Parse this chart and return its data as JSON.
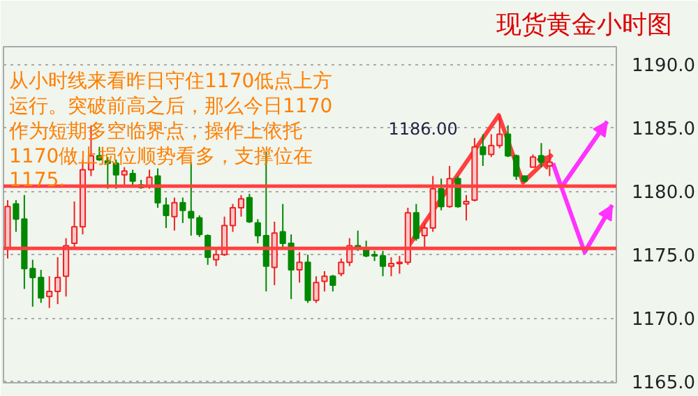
{
  "chart_data": {
    "type": "candlestick",
    "title": "现货黄金小时图",
    "categories": [
      null,
      null,
      null,
      null,
      null,
      null,
      null,
      null,
      null,
      null,
      null,
      null,
      null,
      null,
      null,
      null,
      null,
      null,
      null,
      null,
      null,
      null,
      null,
      null,
      null,
      null,
      null,
      null,
      null,
      null,
      null,
      null,
      null,
      null,
      null,
      null,
      null,
      null,
      null,
      null,
      null,
      null,
      null,
      null,
      null,
      null,
      null,
      null,
      null,
      null,
      null,
      null,
      null,
      null,
      null,
      null,
      null,
      null,
      null,
      null,
      null,
      null,
      null,
      null,
      null,
      null
    ],
    "ohlc": [
      [
        1175.5,
        1179.3,
        1174.7,
        1178.8
      ],
      [
        1179.0,
        1179.3,
        1176.8,
        1177.8
      ],
      [
        1177.8,
        1179.7,
        1172.3,
        1173.9
      ],
      [
        1173.9,
        1174.6,
        1170.9,
        1173.2
      ],
      [
        1173.2,
        1173.8,
        1171.2,
        1171.6
      ],
      [
        1171.7,
        1173.3,
        1170.8,
        1172.1
      ],
      [
        1172.1,
        1174.8,
        1171.1,
        1173.2
      ],
      [
        1173.3,
        1176.3,
        1171.7,
        1175.7
      ],
      [
        1175.9,
        1179.2,
        1175.5,
        1177.2
      ],
      [
        1177.2,
        1182.5,
        1176.6,
        1181.7
      ],
      [
        1181.7,
        1185.2,
        1181.2,
        1182.8
      ],
      [
        1182.8,
        1183.5,
        1182.4,
        1182.5
      ],
      [
        1182.4,
        1182.7,
        1180.2,
        1182.2
      ],
      [
        1182.2,
        1182.5,
        1180.2,
        1181.3
      ],
      [
        1181.3,
        1181.9,
        1180.3,
        1181.6
      ],
      [
        1181.4,
        1181.7,
        1180.3,
        1180.8
      ],
      [
        1180.5,
        1180.9,
        1180.2,
        1180.3
      ],
      [
        1180.4,
        1181.7,
        1180.2,
        1181.1
      ],
      [
        1181.2,
        1181.8,
        1178.7,
        1179.1
      ],
      [
        1178.9,
        1179.5,
        1177.1,
        1178.1
      ],
      [
        1178.0,
        1179.5,
        1176.9,
        1179.1
      ],
      [
        1179.1,
        1179.5,
        1177.5,
        1178.5
      ],
      [
        1178.4,
        1182.3,
        1176.5,
        1177.9
      ],
      [
        1177.9,
        1178.1,
        1176.4,
        1176.6
      ],
      [
        1176.5,
        1176.6,
        1174.2,
        1174.8
      ],
      [
        1174.6,
        1175.6,
        1174.1,
        1175.0
      ],
      [
        1175.0,
        1178.0,
        1174.9,
        1177.3
      ],
      [
        1177.3,
        1179.0,
        1176.8,
        1178.7
      ],
      [
        1178.7,
        1179.7,
        1178.0,
        1179.4
      ],
      [
        1179.5,
        1179.8,
        1177.5,
        1177.6
      ],
      [
        1177.5,
        1177.8,
        1175.9,
        1176.5
      ],
      [
        1176.5,
        1183.1,
        1172.1,
        1174.1
      ],
      [
        1174.0,
        1177.6,
        1172.6,
        1176.7
      ],
      [
        1176.8,
        1179.0,
        1175.6,
        1175.9
      ],
      [
        1175.9,
        1176.6,
        1171.5,
        1173.8
      ],
      [
        1173.8,
        1175.2,
        1172.8,
        1174.4
      ],
      [
        1174.4,
        1175.0,
        1171.2,
        1171.4
      ],
      [
        1171.4,
        1173.3,
        1171.2,
        1172.8
      ],
      [
        1172.9,
        1173.7,
        1172.1,
        1173.3
      ],
      [
        1173.3,
        1173.4,
        1172.1,
        1172.6
      ],
      [
        1173.5,
        1174.7,
        1173.3,
        1174.4
      ],
      [
        1174.4,
        1176.3,
        1174.1,
        1175.7
      ],
      [
        1175.7,
        1176.9,
        1175.3,
        1175.5
      ],
      [
        1175.5,
        1176.1,
        1174.8,
        1174.9
      ],
      [
        1175.0,
        1175.3,
        1174.5,
        1174.9
      ],
      [
        1174.9,
        1175.3,
        1173.3,
        1174.1
      ],
      [
        1174.1,
        1174.8,
        1173.3,
        1174.3
      ],
      [
        1174.3,
        1174.9,
        1173.5,
        1174.4
      ],
      [
        1174.4,
        1178.7,
        1174.2,
        1178.3
      ],
      [
        1178.3,
        1179.0,
        1176.1,
        1176.3
      ],
      [
        1176.5,
        1177.5,
        1175.6,
        1177.1
      ],
      [
        1177.1,
        1181.2,
        1176.8,
        1180.2
      ],
      [
        1180.2,
        1181.0,
        1178.5,
        1178.8
      ],
      [
        1178.8,
        1182.0,
        1178.7,
        1181.0
      ],
      [
        1181.0,
        1181.2,
        1178.7,
        1178.8
      ],
      [
        1179.0,
        1179.7,
        1177.7,
        1179.2
      ],
      [
        1179.3,
        1184.2,
        1179.2,
        1183.5
      ],
      [
        1183.5,
        1184.5,
        1182.0,
        1182.9
      ],
      [
        1182.9,
        1184.5,
        1182.7,
        1183.6
      ],
      [
        1183.6,
        1186.0,
        1183.4,
        1184.5
      ],
      [
        1184.5,
        1185.2,
        1182.7,
        1182.8
      ],
      [
        1182.8,
        1182.9,
        1180.9,
        1181.2
      ],
      [
        1181.2,
        1181.2,
        1180.7,
        1180.8
      ],
      [
        1181.9,
        1182.9,
        1181.9,
        1182.7
      ],
      [
        1182.8,
        1183.8,
        1181.9,
        1182.3
      ],
      [
        1182.0,
        1183.3,
        1181.2,
        1182.3
      ]
    ],
    "ref_lines": [
      {
        "axis": "y",
        "value": 1180.4,
        "color": "#ff4040"
      },
      {
        "axis": "y",
        "value": 1175.5,
        "color": "#ff4040"
      }
    ],
    "annotations": [
      "1186.00",
      "从小时线来看昨日守住1170低点上方",
      "运行。突破前高之后，那么今日1170",
      "作为短期多空临界点，操作上依托",
      "1170做止损位顺势看多，支撑位在",
      "1175."
    ],
    "ylim": [
      1164.9,
      1191.4
    ],
    "yticks": [
      {
        "value": 1165,
        "label": "1165.0"
      },
      {
        "value": 1170,
        "label": "1170.0"
      },
      {
        "value": 1175,
        "label": "1175.0"
      },
      {
        "value": 1180,
        "label": "1180.0"
      },
      {
        "value": 1185,
        "label": "1185.0"
      },
      {
        "value": 1190,
        "label": "1190.0"
      }
    ],
    "grid": "y",
    "tick_labels": "y"
  }
}
